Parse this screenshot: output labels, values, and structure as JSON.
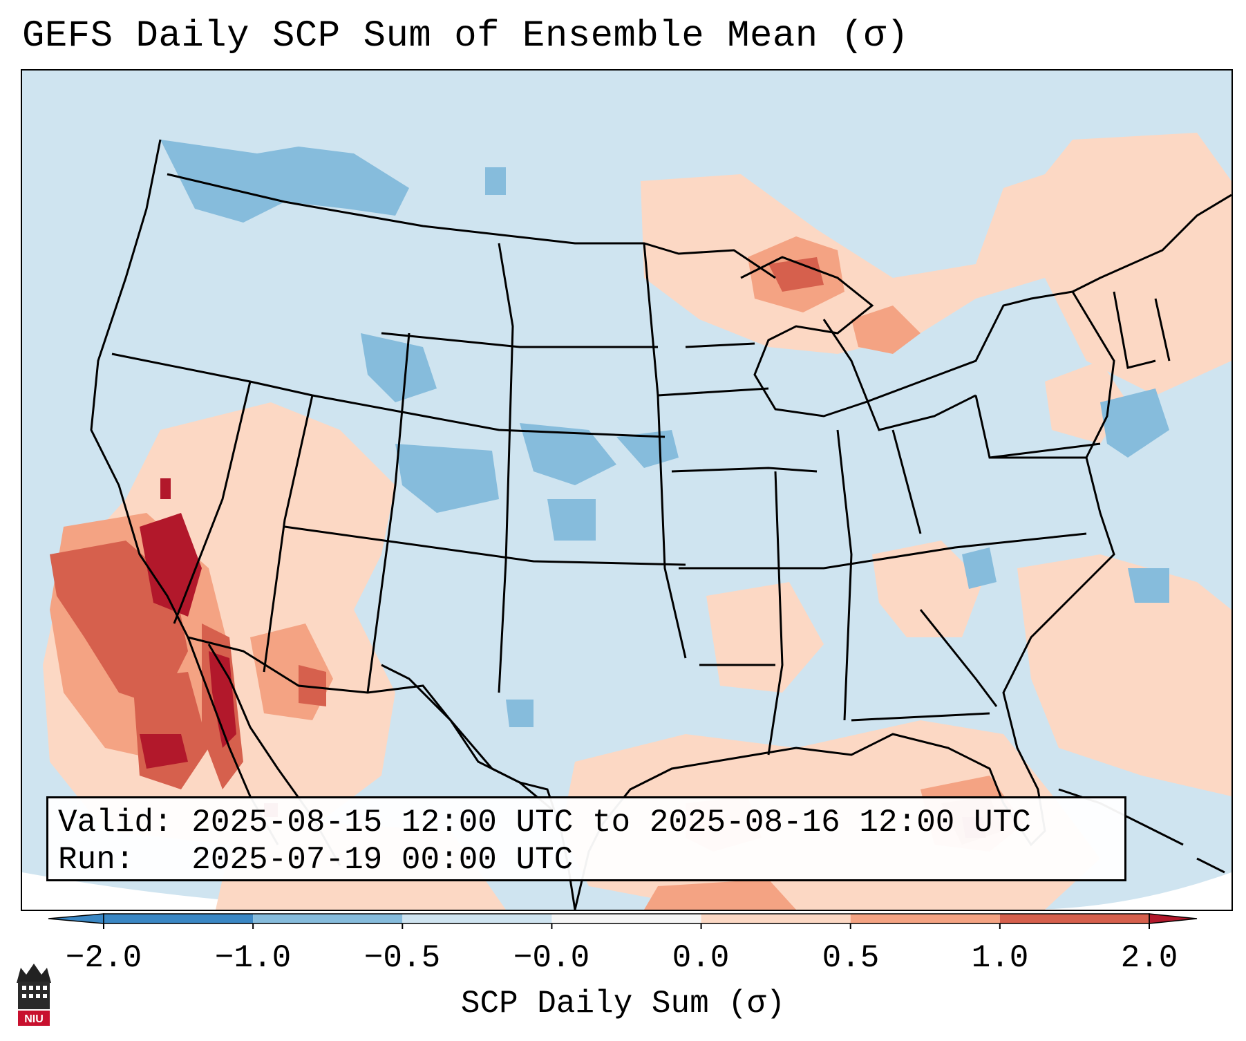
{
  "title": "GEFS Daily SCP Sum of Ensemble Mean (σ)",
  "info": {
    "valid_line": "Valid: 2025-08-15 12:00 UTC to 2025-08-16 12:00 UTC",
    "run_line": "Run:   2025-07-19 00:00 UTC"
  },
  "colorbar": {
    "label": "SCP Daily Sum (σ)",
    "ticks": [
      "−2.0",
      "−1.0",
      "−0.5",
      "−0.0",
      "0.0",
      "0.5",
      "1.0",
      "2.0"
    ],
    "colors": [
      "#3a87c4",
      "#86bcdc",
      "#cfe4f0",
      "#f5f5f5",
      "#fcd8c4",
      "#f4a383",
      "#d6604d",
      "#b2182b"
    ]
  },
  "map": {
    "background_color": "#cfe4f0",
    "region": "Contiguous United States, Mexico, Gulf of Mexico",
    "icons": [
      "state-boundaries-icon",
      "coastlines-icon"
    ]
  },
  "logo": {
    "text": "NIU"
  }
}
